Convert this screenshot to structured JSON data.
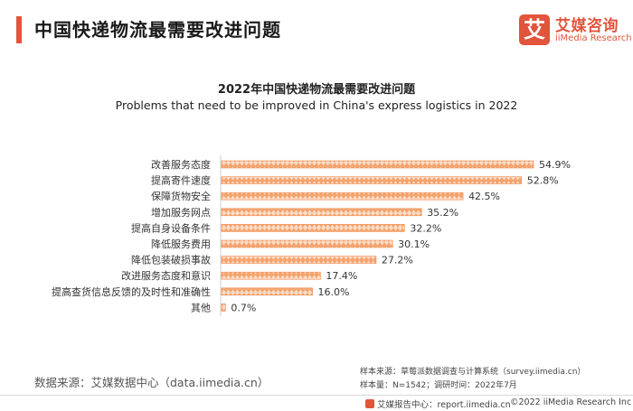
{
  "header": {
    "title": "中国快递物流最需要改进问题"
  },
  "logo": {
    "mark": "艾",
    "name_cn": "艾媒咨询",
    "name_en": "iiMedia Research"
  },
  "colors": {
    "accent": "#e2543c",
    "bar": "#f08a4b"
  },
  "chart_data": {
    "type": "bar",
    "orientation": "horizontal",
    "title": "2022年中国快递物流最需要改进问题",
    "subtitle": "Problems that need to be improved in China's express logistics in 2022",
    "unit": "%",
    "categories": [
      "改善服务态度",
      "提高寄件速度",
      "保障货物安全",
      "增加服务网点",
      "提高自身设备条件",
      "降低服务费用",
      "降低包装破损事故",
      "改进服务态度和意识",
      "提高查货信息反馈的及时性和准确性",
      "其他"
    ],
    "values": [
      54.9,
      52.8,
      42.5,
      35.2,
      32.2,
      30.1,
      27.2,
      17.4,
      16.0,
      0.7
    ],
    "value_labels": [
      "54.9%",
      "52.8%",
      "42.5%",
      "35.2%",
      "32.2%",
      "30.1%",
      "27.2%",
      "17.4%",
      "16.0%",
      "0.7%"
    ],
    "xlim": [
      0,
      60
    ],
    "grid": false,
    "legend": "none"
  },
  "footer": {
    "source": "数据来源：艾媒数据中心（data.iimedia.cn）",
    "sample_source": "样本来源：草莓派数据调查与计算系统（survey.iimedia.cn）",
    "sample_info": "样本量：N=1542；调研时间：2022年7月",
    "report_site": "艾媒报告中心：report.iimedia.cn",
    "copyright": "©2022  iiMedia Research  Inc"
  }
}
